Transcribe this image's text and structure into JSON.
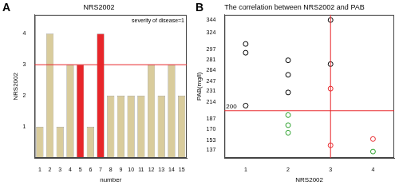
{
  "chart_data": [
    {
      "panel": "A",
      "type": "bar",
      "title": "NRS2002",
      "x_label": "number",
      "y_label": "NRS2002",
      "categories": [
        "1",
        "2",
        "3",
        "4",
        "5",
        "6",
        "7",
        "8",
        "9",
        "10",
        "11",
        "12",
        "13",
        "14",
        "15"
      ],
      "values": [
        1,
        4,
        1,
        3,
        3,
        1,
        4,
        2,
        2,
        2,
        2,
        3,
        2,
        3,
        2
      ],
      "colors": [
        "#d9cc9c",
        "#d9cc9c",
        "#d9cc9c",
        "#d9cc9c",
        "#e8262a",
        "#d9cc9c",
        "#e8262a",
        "#d9cc9c",
        "#d9cc9c",
        "#d9cc9c",
        "#d9cc9c",
        "#d9cc9c",
        "#d9cc9c",
        "#d9cc9c",
        "#d9cc9c"
      ],
      "ylim": [
        0,
        4.6
      ],
      "yticks": [
        1,
        2,
        3,
        4
      ],
      "hline": 3,
      "annotation": "severity of disease=1",
      "grid": false
    },
    {
      "panel": "B",
      "type": "scatter",
      "title": "The correlation between NRS2002 and PAB",
      "x_label": "NRS2002",
      "y_label": "PAB(mg/l)",
      "series": [
        {
          "color": "#000000",
          "marker": "circle",
          "x": [
            1,
            1,
            1,
            2,
            2,
            2,
            3,
            3
          ],
          "values": [
            306,
            292,
            208,
            280,
            257,
            229,
            344,
            274
          ]
        },
        {
          "color": "#2ca02c",
          "marker": "circle",
          "x": [
            2,
            2,
            2,
            4
          ],
          "values": [
            193,
            177,
            165,
            135
          ]
        },
        {
          "color": "#e8262a",
          "marker": "circle",
          "x": [
            3,
            3,
            4
          ],
          "values": [
            235,
            145,
            155
          ]
        }
      ],
      "xlim": [
        0.5,
        4.5
      ],
      "xticks": [
        1,
        2,
        3,
        4
      ],
      "ylim": [
        125,
        352
      ],
      "yticks": [
        137,
        153,
        170,
        187,
        214,
        231,
        247,
        264,
        281,
        297,
        324,
        344
      ],
      "hline": 200,
      "vline": 3,
      "grid": false
    }
  ]
}
